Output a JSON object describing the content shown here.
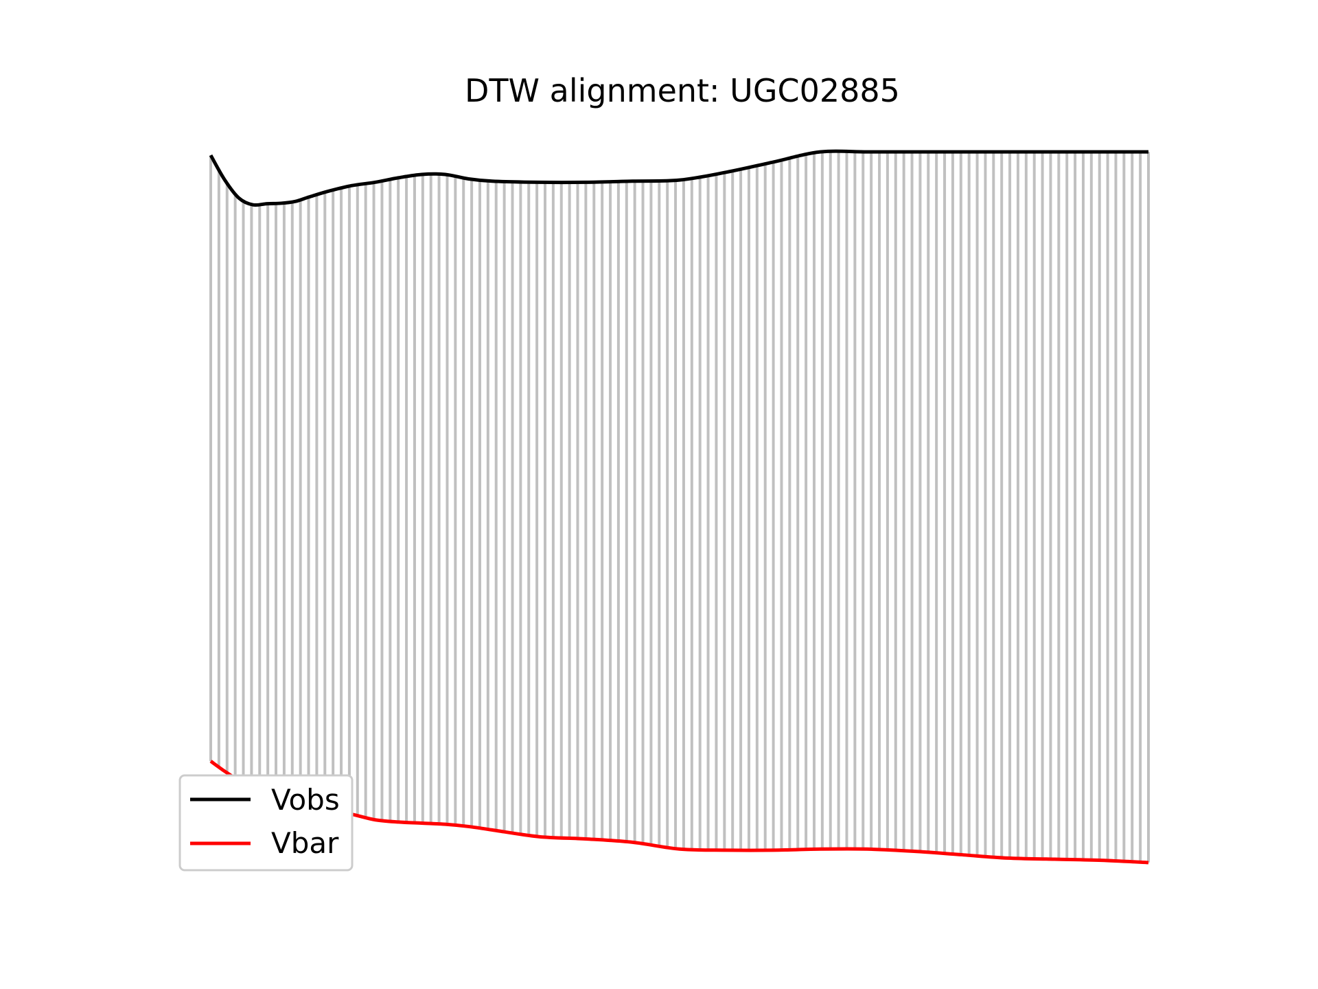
{
  "chart_data": {
    "type": "line",
    "title": "DTW alignment: UGC02885",
    "xlabel": "",
    "ylabel": "",
    "axes_visible": false,
    "grid": false,
    "legend_placement": "lower-left",
    "x": [
      0,
      3,
      6,
      9,
      12,
      15,
      18,
      21,
      25,
      30,
      35,
      40,
      45,
      50,
      55,
      60,
      70,
      80,
      90,
      100,
      110,
      120,
      130,
      140,
      150,
      160,
      170,
      180,
      190,
      200
    ],
    "series": [
      {
        "name": "Vobs",
        "color": "#000000",
        "values": [
          3.2,
          2.1,
          1.3,
          1.0,
          1.05,
          1.07,
          1.15,
          1.35,
          1.6,
          1.85,
          2.0,
          2.2,
          2.35,
          2.35,
          2.15,
          2.05,
          2.0,
          2.0,
          2.05,
          2.1,
          2.45,
          2.9,
          3.35,
          3.35,
          3.35,
          3.35,
          3.35,
          3.35,
          3.35,
          3.35
        ]
      },
      {
        "name": "Vbar",
        "color": "#ff0000",
        "values": [
          -23.7,
          -24.15,
          -24.55,
          -24.85,
          -25.1,
          -25.3,
          -25.45,
          -25.65,
          -25.85,
          -26.05,
          -26.3,
          -26.4,
          -26.45,
          -26.5,
          -26.6,
          -26.75,
          -27.05,
          -27.15,
          -27.3,
          -27.6,
          -27.65,
          -27.65,
          -27.6,
          -27.6,
          -27.7,
          -27.85,
          -28.0,
          -28.05,
          -28.1,
          -28.2
        ]
      }
    ],
    "alignment_count": 116,
    "alignment_color": "#c0c0c0",
    "ylim": [
      -29.3,
      4.3
    ]
  }
}
